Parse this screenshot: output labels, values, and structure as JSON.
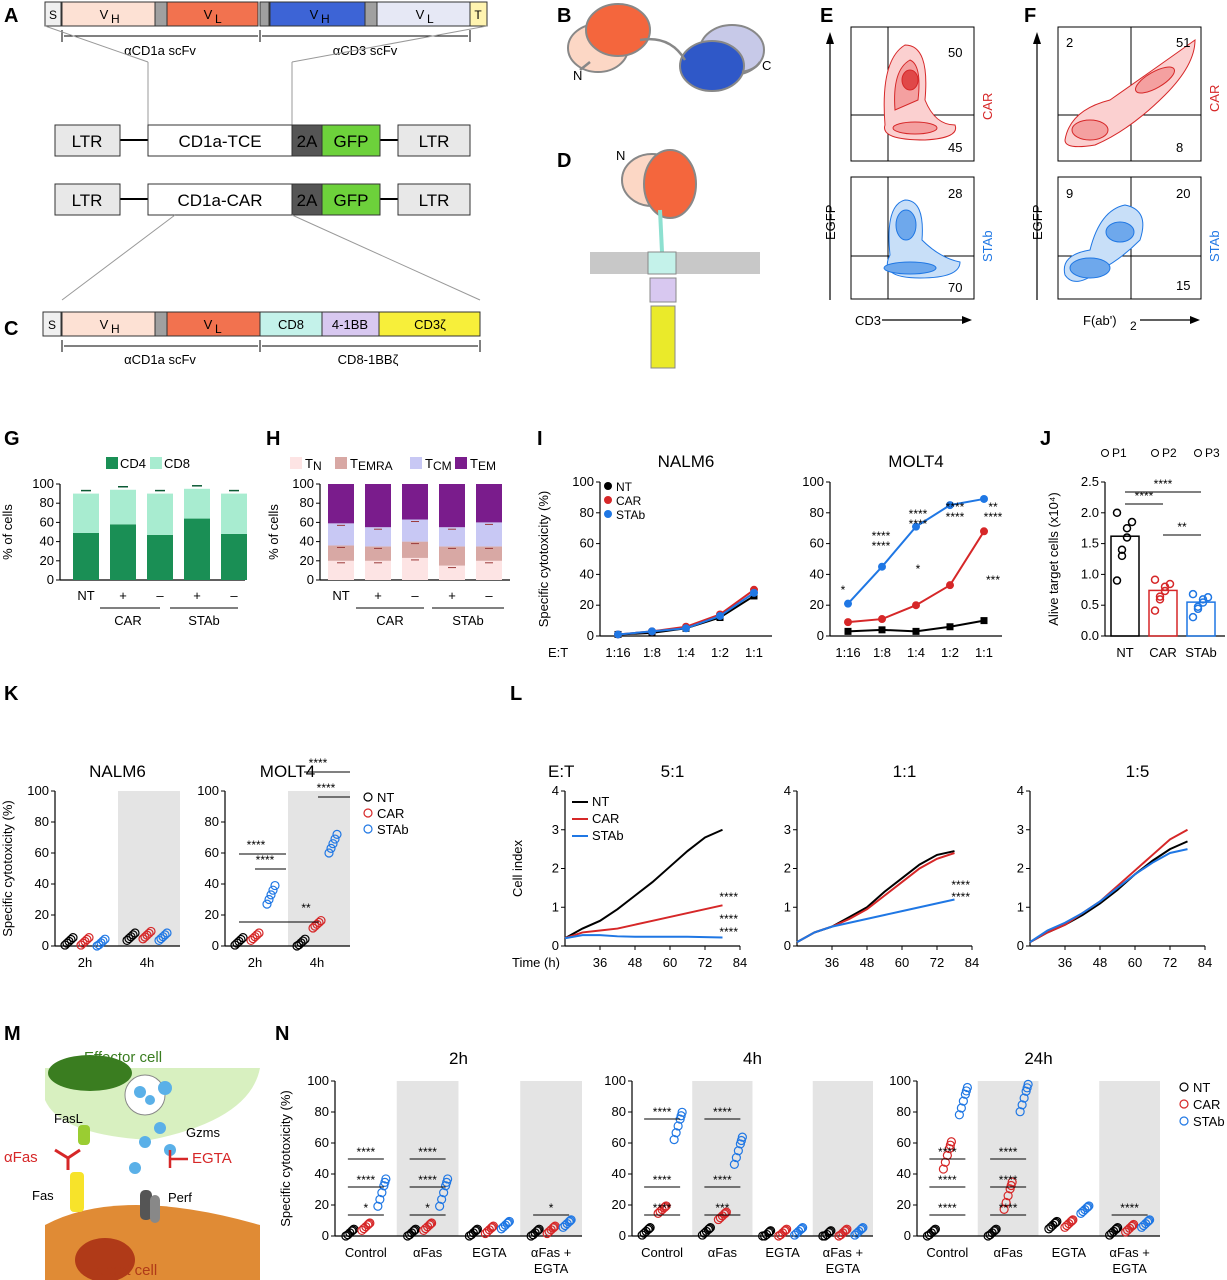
{
  "panels": [
    "A",
    "B",
    "C",
    "D",
    "E",
    "F",
    "G",
    "H",
    "I",
    "J",
    "K",
    "L",
    "M",
    "N"
  ],
  "construct": {
    "top_row": [
      "S",
      "V",
      "H",
      "V",
      "L",
      "V",
      "H",
      "V",
      "L",
      "T"
    ],
    "top_brackets": [
      "αCD1a scFv",
      "αCD3 scFv"
    ],
    "tce": [
      "LTR",
      "CD1a-TCE",
      "2A",
      "GFP",
      "LTR"
    ],
    "car": [
      "LTR",
      "CD1a-CAR",
      "2A",
      "GFP",
      "LTR"
    ],
    "bottom_row": [
      "S",
      "V",
      "H",
      "V",
      "L",
      "CD8",
      "4-1BB",
      "CD3ζ"
    ],
    "bottom_brackets": [
      "αCD1a scFv",
      "CD8-1BBζ"
    ]
  },
  "schematic": {
    "n": "N",
    "c": "C"
  },
  "colors": {
    "nt": "#000000",
    "car": "#d62728",
    "stab": "#1f77e4",
    "cd4": "#1a8f55",
    "cd8": "#a8ecd0"
  },
  "flow": {
    "E": {
      "ylabel": "EGFP",
      "xlabel": "CD3",
      "car": {
        "label": "CAR",
        "q_ur": "50",
        "q_lr": "45"
      },
      "stab": {
        "label": "STAb",
        "q_ur": "28",
        "q_lr": "70"
      }
    },
    "F": {
      "ylabel": "EGFP",
      "xlabel": "F(ab')",
      "xlabel_sub": "2",
      "car": {
        "label": "CAR",
        "q_ul": "2",
        "q_ur": "51",
        "q_lr": "8"
      },
      "stab": {
        "label": "STAb",
        "q_ul": "9",
        "q_ur": "20",
        "q_lr": "15"
      }
    }
  },
  "chart_data": [
    {
      "panel": "G",
      "type": "bar",
      "stacked": true,
      "ylabel": "% of cells",
      "ylim": [
        0,
        100
      ],
      "yticks": [
        "0",
        "20",
        "40",
        "60",
        "80",
        "100"
      ],
      "categories": [
        "NT",
        "+",
        "–",
        "+",
        "–"
      ],
      "groups": [
        "CAR",
        "STAb"
      ],
      "legend": [
        "CD4",
        "CD8"
      ],
      "series": [
        {
          "name": "CD4",
          "values": [
            49,
            58,
            47,
            64,
            48
          ]
        },
        {
          "name": "CD8",
          "values": [
            41,
            36,
            43,
            31,
            42
          ]
        }
      ]
    },
    {
      "panel": "H",
      "type": "bar",
      "stacked": true,
      "ylabel": "% of cells",
      "ylim": [
        0,
        100
      ],
      "yticks": [
        "0",
        "20",
        "40",
        "60",
        "80",
        "100"
      ],
      "categories": [
        "NT",
        "+",
        "–",
        "+",
        "–"
      ],
      "groups": [
        "CAR",
        "STAb"
      ],
      "legend_main": [
        "T",
        "T",
        "T",
        "T"
      ],
      "legend_sub": [
        "N",
        "EMRA",
        "CM",
        "EM"
      ],
      "series": [
        {
          "name": "TN",
          "values": [
            20,
            20,
            23,
            15,
            20
          ]
        },
        {
          "name": "TEMRA",
          "values": [
            16,
            15,
            17,
            20,
            15
          ]
        },
        {
          "name": "TCM",
          "values": [
            23,
            20,
            23,
            20,
            25
          ]
        },
        {
          "name": "TEM",
          "values": [
            41,
            45,
            37,
            45,
            40
          ]
        }
      ]
    },
    {
      "panel": "I",
      "type": "line",
      "ylabel": "Specific cytotoxicity (%)",
      "ylim": [
        0,
        100
      ],
      "yticks": [
        "0",
        "20",
        "40",
        "60",
        "80",
        "100"
      ],
      "xlabel_prefix": "E:T",
      "categories": [
        "1:16",
        "1:8",
        "1:4",
        "1:2",
        "1:1"
      ],
      "legend": [
        "NT",
        "CAR",
        "STAb"
      ],
      "subplots": [
        {
          "title": "NALM6",
          "series": [
            {
              "name": "NT",
              "values": [
                1,
                2,
                5,
                12,
                26
              ]
            },
            {
              "name": "CAR",
              "values": [
                1,
                3,
                6,
                14,
                30
              ]
            },
            {
              "name": "STAb",
              "values": [
                1,
                3,
                5,
                13,
                28
              ]
            }
          ]
        },
        {
          "title": "MOLT4",
          "series": [
            {
              "name": "NT",
              "values": [
                3,
                4,
                3,
                6,
                10
              ]
            },
            {
              "name": "CAR",
              "values": [
                9,
                11,
                20,
                33,
                68
              ]
            },
            {
              "name": "STAb",
              "values": [
                21,
                45,
                71,
                85,
                89
              ]
            }
          ],
          "sig_black": [
            "*",
            "****",
            "****",
            "****",
            "****",
            "***"
          ],
          "sig_red": [
            "****",
            "****",
            "****",
            "**"
          ]
        }
      ]
    },
    {
      "panel": "J",
      "type": "bar",
      "ylabel": "Alive target cells (x10⁴)",
      "ylim": [
        0,
        2.5
      ],
      "yticks": [
        "0.0",
        "0.5",
        "1.0",
        "1.5",
        "2.0",
        "2.5"
      ],
      "categories": [
        "NT",
        "CAR",
        "STAb"
      ],
      "values": [
        1.62,
        0.74,
        0.55
      ],
      "legend": [
        "P1",
        "P2",
        "P3"
      ],
      "sig": [
        "****",
        "****",
        "**"
      ]
    },
    {
      "panel": "K",
      "type": "scatter",
      "ylabel": "Specific cytotoxicity (%)",
      "ylim": [
        0,
        100
      ],
      "yticks": [
        "0",
        "20",
        "40",
        "60",
        "80",
        "100"
      ],
      "categories": [
        "2h",
        "4h"
      ],
      "legend": [
        "NT",
        "CAR",
        "STAb"
      ],
      "subplots": [
        {
          "title": "NALM6",
          "series": [
            {
              "name": "NT",
              "values": [
                3,
                6
              ]
            },
            {
              "name": "CAR",
              "values": [
                3,
                7
              ]
            },
            {
              "name": "STAb",
              "values": [
                2,
                6
              ]
            }
          ]
        },
        {
          "title": "MOLT4",
          "series": [
            {
              "name": "NT",
              "values": [
                3,
                2
              ]
            },
            {
              "name": "CAR",
              "values": [
                6,
                14
              ]
            },
            {
              "name": "STAb",
              "values": [
                33,
                66
              ]
            }
          ],
          "sig": [
            "****",
            "****",
            "**",
            "****",
            "****"
          ]
        }
      ]
    },
    {
      "panel": "L",
      "type": "line",
      "ylabel": "Cell index",
      "xlabel": "Time (h)",
      "ylim": [
        0,
        4
      ],
      "yticks": [
        "0",
        "1",
        "2",
        "3",
        "4"
      ],
      "xticks": [
        "36",
        "48",
        "60",
        "72",
        "84"
      ],
      "et_label": "E:T",
      "legend": [
        "NT",
        "CAR",
        "STAb"
      ],
      "subplots": [
        {
          "title": "5:1",
          "sig_black": [
            "****",
            "****"
          ],
          "sig_red": [
            "****"
          ],
          "series": [
            {
              "name": "NT",
              "x": [
                24,
                30,
                36,
                42,
                48,
                54,
                60,
                66,
                72,
                78
              ],
              "y": [
                0.2,
                0.45,
                0.65,
                0.95,
                1.3,
                1.65,
                2.05,
                2.45,
                2.8,
                3.0
              ]
            },
            {
              "name": "CAR",
              "x": [
                24,
                30,
                36,
                42,
                48,
                54,
                60,
                66,
                72,
                78
              ],
              "y": [
                0.2,
                0.35,
                0.4,
                0.45,
                0.55,
                0.65,
                0.75,
                0.85,
                0.95,
                1.05
              ]
            },
            {
              "name": "STAb",
              "x": [
                24,
                30,
                36,
                42,
                48,
                54,
                60,
                66,
                72,
                78
              ],
              "y": [
                0.2,
                0.28,
                0.28,
                0.25,
                0.24,
                0.24,
                0.24,
                0.24,
                0.23,
                0.22
              ]
            }
          ]
        },
        {
          "title": "1:1",
          "sig_red": [
            "****"
          ],
          "sig_black": [
            "****"
          ],
          "series": [
            {
              "name": "NT",
              "x": [
                24,
                30,
                36,
                42,
                48,
                54,
                60,
                66,
                72,
                78
              ],
              "y": [
                0.1,
                0.35,
                0.5,
                0.75,
                1.0,
                1.4,
                1.75,
                2.1,
                2.35,
                2.45
              ]
            },
            {
              "name": "CAR",
              "x": [
                24,
                30,
                36,
                42,
                48,
                54,
                60,
                66,
                72,
                78
              ],
              "y": [
                0.1,
                0.35,
                0.5,
                0.7,
                0.95,
                1.3,
                1.65,
                2.0,
                2.25,
                2.4
              ]
            },
            {
              "name": "STAb",
              "x": [
                24,
                30,
                36,
                42,
                48,
                54,
                60,
                66,
                72,
                78
              ],
              "y": [
                0.1,
                0.35,
                0.5,
                0.6,
                0.7,
                0.8,
                0.9,
                1.0,
                1.1,
                1.2
              ]
            }
          ]
        },
        {
          "title": "1:5",
          "series": [
            {
              "name": "NT",
              "x": [
                24,
                30,
                36,
                42,
                48,
                54,
                60,
                66,
                72,
                78
              ],
              "y": [
                0.1,
                0.35,
                0.55,
                0.8,
                1.1,
                1.45,
                1.85,
                2.2,
                2.5,
                2.7
              ]
            },
            {
              "name": "CAR",
              "x": [
                24,
                30,
                36,
                42,
                48,
                54,
                60,
                66,
                72,
                78
              ],
              "y": [
                0.1,
                0.35,
                0.55,
                0.85,
                1.15,
                1.55,
                1.95,
                2.35,
                2.75,
                3.0
              ]
            },
            {
              "name": "STAb",
              "x": [
                24,
                30,
                36,
                42,
                48,
                54,
                60,
                66,
                72,
                78
              ],
              "y": [
                0.1,
                0.4,
                0.6,
                0.85,
                1.15,
                1.5,
                1.85,
                2.15,
                2.4,
                2.5
              ]
            }
          ]
        }
      ]
    },
    {
      "panel": "N",
      "type": "scatter",
      "ylabel": "Specific cytotoxicity (%)",
      "ylim": [
        0,
        100
      ],
      "yticks": [
        "0",
        "20",
        "40",
        "60",
        "80",
        "100"
      ],
      "categories": [
        "Control",
        "αFas",
        "EGTA",
        "αFas +"
      ],
      "categories_line2": [
        "",
        "",
        "",
        "EGTA"
      ],
      "legend": [
        "NT",
        "CAR",
        "STAb"
      ],
      "subplots": [
        {
          "title": "2h",
          "series": [
            {
              "name": "NT",
              "values": [
                2,
                2,
                2,
                2
              ]
            },
            {
              "name": "CAR",
              "values": [
                6,
                6,
                4,
                4
              ]
            },
            {
              "name": "STAb",
              "values": [
                28,
                28,
                7,
                8
              ]
            }
          ],
          "sig": [
            "*",
            "****",
            "****",
            "*",
            "****",
            "****",
            "*"
          ]
        },
        {
          "title": "4h",
          "series": [
            {
              "name": "NT",
              "values": [
                3,
                3,
                1,
                1
              ]
            },
            {
              "name": "CAR",
              "values": [
                17,
                13,
                2,
                2
              ]
            },
            {
              "name": "STAb",
              "values": [
                71,
                55,
                3,
                3
              ]
            }
          ],
          "sig": [
            "****",
            "****",
            "****",
            "***",
            "****",
            "****"
          ]
        },
        {
          "title": "24h",
          "series": [
            {
              "name": "NT",
              "values": [
                2,
                2,
                7,
                3
              ]
            },
            {
              "name": "CAR",
              "values": [
                52,
                26,
                8,
                5
              ]
            },
            {
              "name": "STAb",
              "values": [
                87,
                89,
                17,
                8
              ]
            }
          ],
          "sig": [
            "****",
            "****",
            "****",
            "****",
            "****",
            "****",
            "****"
          ]
        }
      ]
    }
  ],
  "mechanism": {
    "effector": "Effector cell",
    "target": "Target cell",
    "fasl": "FasL",
    "fas": "Fas",
    "afas": "αFas",
    "gzms": "Gzms",
    "egta": "EGTA",
    "perf": "Perf"
  }
}
